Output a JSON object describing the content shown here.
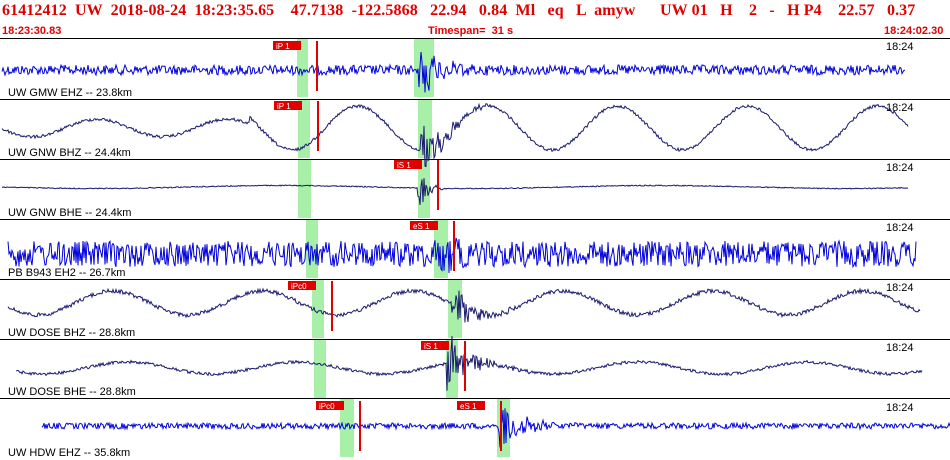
{
  "header": {
    "title": "61412412  UW  2018-08-24  18:23:35.65    47.7138  -122.5868   22.94   0.84  Ml   eq   L  amyw      UW 01   H    2   -   H P4    22.57   0.37",
    "start_time": "18:23:30.83",
    "timespan": "Timespan=  31 s",
    "end_time": "18:24:02.30",
    "accent_color": "#e00000"
  },
  "panels": [
    {
      "station": "UW GMW EHZ -- 23.8km",
      "clock": "18:24",
      "pick": "iP 1",
      "color": "#0000dd"
    },
    {
      "station": "UW GNW BHZ -- 24.4km",
      "clock": "18:24",
      "pick": "iP 1",
      "color": "#1a1a6e"
    },
    {
      "station": "UW GNW BHE -- 24.4km",
      "clock": "18:24",
      "pick": "iS 1",
      "color": "#1a1a6e"
    },
    {
      "station": "PB B943 EH2 -- 26.7km",
      "clock": "18:24",
      "pick": "eS 1",
      "color": "#0000dd"
    },
    {
      "station": "UW DOSE BHZ -- 28.8km",
      "clock": "18:24",
      "pick": "iPc0",
      "color": "#1a1a6e"
    },
    {
      "station": "UW DOSE BHE -- 28.8km",
      "clock": "18:24",
      "pick": "iS 1",
      "color": "#1a1a6e"
    },
    {
      "station": "UW HDW EHZ -- 35.8km",
      "clock": "18:24",
      "pick": "iPc0",
      "pick2": "eS 1",
      "color": "#0000dd"
    }
  ]
}
